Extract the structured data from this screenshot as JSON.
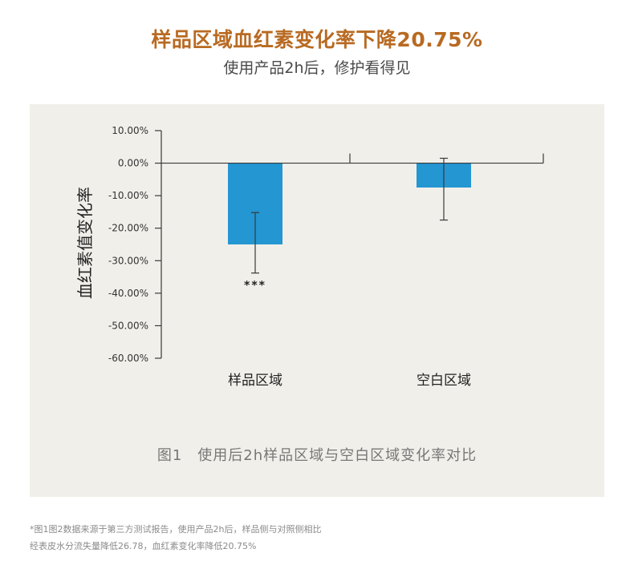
{
  "header": {
    "title": "样品区域血红素变化率下降20.75%",
    "subtitle": "使用产品2h后，修护看得见"
  },
  "figure": {
    "caption": "图1　使用后2h样品区域与空白区域变化率对比"
  },
  "footnote": {
    "line1": "*图1图2数据来源于第三方测试报告，使用产品2h后，样品侧与对照侧相比",
    "line2": "经表皮水分流失量降低26.78，血红素变化率降低20.75%"
  },
  "colors": {
    "accent": "#b86a22",
    "bar": "#2496d2",
    "panel": "#f1efea"
  },
  "chart_data": {
    "type": "bar",
    "categories": [
      "样品区域",
      "空白区域"
    ],
    "values": [
      -25,
      -7.5
    ],
    "error_low": [
      -33.8,
      -17.5
    ],
    "error_high": [
      -15.2,
      1.5
    ],
    "significance": [
      "***",
      ""
    ],
    "ylabel": "血红素值变化率",
    "ylim": [
      -60,
      10
    ],
    "yticks": [
      10,
      0,
      -10,
      -20,
      -30,
      -40,
      -50,
      -60
    ],
    "ytick_labels": [
      "10.00%",
      "0.00%",
      "-10.00%",
      "-20.00%",
      "-30.00%",
      "-40.00%",
      "-50.00%",
      "-60.00%"
    ],
    "grid": false,
    "legend": "none"
  }
}
